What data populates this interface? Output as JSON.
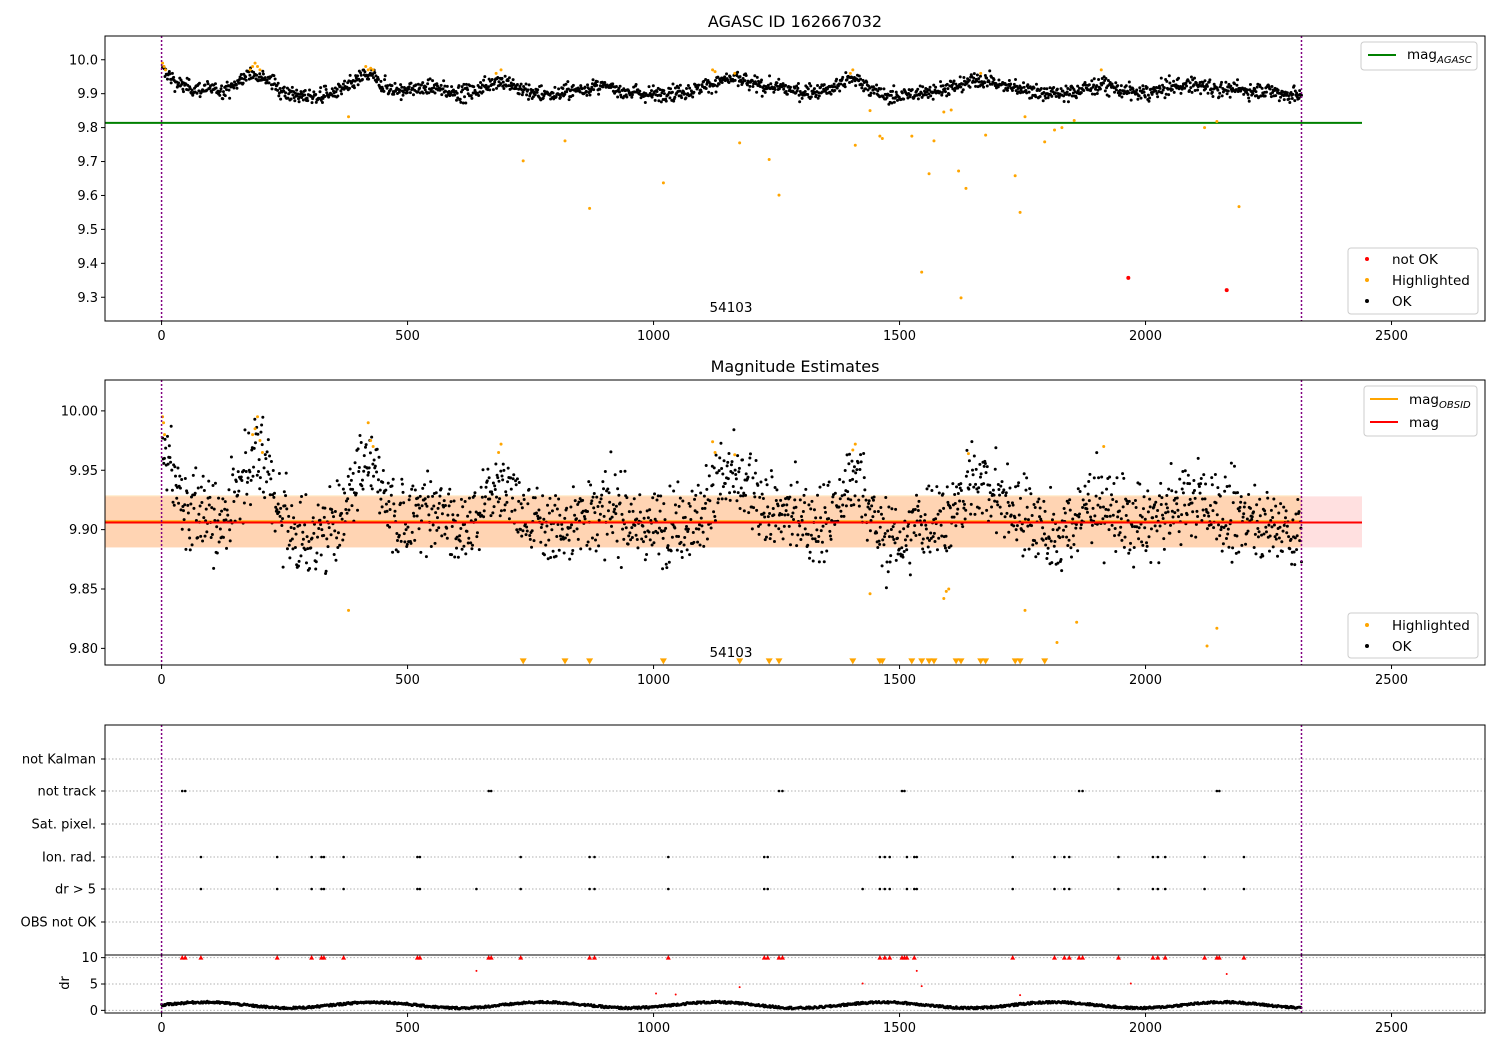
{
  "chart_data": [
    {
      "type": "scatter",
      "title": "AGASC ID 162667032",
      "annotation": "54103",
      "xlim": [
        -115,
        2690
      ],
      "ylim": [
        9.23,
        10.07
      ],
      "xticks": [
        "0",
        "500",
        "1000",
        "1500",
        "2000",
        "2500"
      ],
      "xtick_values": [
        0,
        500,
        1000,
        1500,
        2000,
        2500
      ],
      "yticks": [
        "9.3",
        "9.4",
        "9.5",
        "9.6",
        "9.7",
        "9.8",
        "9.9",
        "10.0"
      ],
      "ytick_values": [
        9.3,
        9.4,
        9.5,
        9.6,
        9.7,
        9.8,
        9.9,
        10.0
      ],
      "vlines": [
        0,
        2317
      ],
      "hline": {
        "name": "mag_AGASC",
        "y": 9.814,
        "x": [
          -115,
          2440
        ],
        "color": "#008000"
      },
      "legend_lines": [
        {
          "label": "mag",
          "sub": "AGASC",
          "color": "#008000"
        }
      ],
      "legend_points": [
        {
          "label": "not OK",
          "color": "#ff0000"
        },
        {
          "label": "Highlighted",
          "color": "#ffa500"
        },
        {
          "label": "OK",
          "color": "#000000"
        }
      ],
      "series": [
        {
          "name": "not OK",
          "color": "#ff0000",
          "x": [
            1965,
            2165
          ],
          "y": [
            9.357,
            9.321
          ]
        },
        {
          "name": "Highlighted",
          "color": "#ffa500",
          "x": [
            2,
            5,
            8,
            180,
            185,
            190,
            195,
            200,
            380,
            415,
            420,
            425,
            430,
            680,
            690,
            735,
            820,
            870,
            1020,
            1120,
            1125,
            1165,
            1175,
            1235,
            1255,
            1400,
            1405,
            1410,
            1440,
            1460,
            1465,
            1525,
            1545,
            1560,
            1570,
            1590,
            1605,
            1620,
            1625,
            1635,
            1665,
            1675,
            1735,
            1745,
            1755,
            1795,
            1815,
            1830,
            1855,
            1910,
            2120,
            2145,
            2190
          ],
          "y": [
            9.99,
            9.98,
            9.97,
            9.97,
            9.98,
            9.99,
            9.98,
            9.97,
            9.832,
            9.98,
            9.97,
            9.975,
            9.97,
            9.96,
            9.97,
            9.702,
            9.761,
            9.562,
            9.637,
            9.97,
            9.965,
            9.96,
            9.755,
            9.706,
            9.601,
            9.96,
            9.97,
            9.748,
            9.85,
            9.775,
            9.768,
            9.775,
            9.374,
            9.664,
            9.761,
            9.846,
            9.852,
            9.672,
            9.298,
            9.621,
            9.96,
            9.778,
            9.658,
            9.55,
            9.832,
            9.758,
            9.793,
            9.8,
            9.821,
            9.97,
            9.8,
            9.818,
            9.567
          ]
        },
        {
          "name": "OK",
          "color": "#000000",
          "x": [],
          "y": []
        }
      ]
    },
    {
      "type": "scatter",
      "title": "Magnitude Estimates",
      "annotation": "54103",
      "xlim": [
        -115,
        2690
      ],
      "ylim": [
        9.786,
        10.026
      ],
      "xticks": [
        "0",
        "500",
        "1000",
        "1500",
        "2000",
        "2500"
      ],
      "xtick_values": [
        0,
        500,
        1000,
        1500,
        2000,
        2500
      ],
      "yticks": [
        "9.80",
        "9.85",
        "9.90",
        "9.95",
        "10.00"
      ],
      "ytick_values": [
        9.8,
        9.85,
        9.9,
        9.95,
        10.0
      ],
      "vlines": [
        0,
        2317
      ],
      "mag_obsid": {
        "name": "mag_OBSID",
        "y": 9.907,
        "band": [
          9.885,
          9.929
        ],
        "x": [
          -115,
          2317
        ],
        "color": "#ffa500"
      },
      "mag": {
        "name": "mag",
        "y": 9.906,
        "band": [
          9.885,
          9.928
        ],
        "x": [
          -115,
          2440
        ],
        "color": "#ff0000"
      },
      "legend_lines": [
        {
          "label": "mag",
          "sub": "OBSID",
          "color": "#ffa500"
        },
        {
          "label": "mag",
          "sub": "",
          "color": "#ff0000"
        }
      ],
      "legend_points": [
        {
          "label": "Highlighted",
          "color": "#ffa500"
        },
        {
          "label": "OK",
          "color": "#000000"
        }
      ],
      "series": [
        {
          "name": "Highlighted",
          "color": "#ffa500",
          "x": [
            2,
            4,
            6,
            185,
            190,
            195,
            200,
            205,
            380,
            420,
            425,
            430,
            685,
            690,
            1120,
            1125,
            1165,
            1405,
            1410,
            1440,
            1590,
            1595,
            1600,
            1640,
            1755,
            1820,
            1860,
            1915,
            2125,
            2145
          ],
          "y": [
            9.995,
            9.99,
            9.98,
            9.98,
            9.985,
            9.995,
            9.975,
            9.965,
            9.832,
            9.99,
            9.975,
            9.97,
            9.965,
            9.972,
            9.974,
            9.965,
            9.963,
            9.967,
            9.972,
            9.846,
            9.842,
            9.848,
            9.85,
            9.964,
            9.832,
            9.805,
            9.822,
            9.97,
            9.802,
            9.817
          ]
        },
        {
          "name": "OK",
          "color": "#000000",
          "x": [],
          "y": []
        },
        {
          "name": "Highlighted (off axis)",
          "color": "#ffa500",
          "x": [
            735,
            820,
            870,
            1020,
            1175,
            1235,
            1255,
            1405,
            1460,
            1465,
            1525,
            1545,
            1560,
            1570,
            1615,
            1625,
            1665,
            1675,
            1735,
            1745,
            1795
          ],
          "y": [
            9.789,
            9.789,
            9.789,
            9.789,
            9.789,
            9.789,
            9.789,
            9.789,
            9.789,
            9.789,
            9.789,
            9.789,
            9.789,
            9.789,
            9.789,
            9.789,
            9.789,
            9.789,
            9.789,
            9.789,
            9.789
          ]
        }
      ]
    },
    {
      "type": "scatter",
      "xlim": [
        -115,
        2690
      ],
      "categories": [
        "not Kalman",
        "not track",
        "Sat. pixel.",
        "Ion. rad.",
        "dr > 5",
        "OBS not OK"
      ],
      "xticks": [
        "0",
        "500",
        "1000",
        "1500",
        "2000",
        "2500"
      ],
      "xtick_values": [
        0,
        500,
        1000,
        1500,
        2000,
        2500
      ],
      "vlines": [
        0,
        2317
      ],
      "flags": {
        "not Kalman": [],
        "not track": [
          42,
          48,
          665,
          670,
          1255,
          1262,
          1505,
          1510,
          1865,
          1872,
          2145,
          2150
        ],
        "Sat. pixel.": [],
        "Ion. rad.": [
          80,
          235,
          305,
          325,
          330,
          370,
          520,
          525,
          730,
          870,
          880,
          1030,
          1225,
          1232,
          1460,
          1470,
          1480,
          1515,
          1530,
          1535,
          1730,
          1815,
          1835,
          1845,
          1945,
          2015,
          2025,
          2040,
          2120,
          2200
        ],
        "dr > 5": [
          80,
          235,
          305,
          325,
          330,
          370,
          520,
          525,
          640,
          730,
          870,
          880,
          1030,
          1225,
          1232,
          1425,
          1460,
          1470,
          1480,
          1515,
          1530,
          1535,
          1730,
          1815,
          1835,
          1845,
          1945,
          2015,
          2025,
          2040,
          2120,
          2200
        ],
        "OBS not OK": []
      }
    },
    {
      "type": "scatter",
      "ylabel": "dr",
      "xlim": [
        -115,
        2690
      ],
      "ylim": [
        -0.5,
        10.5
      ],
      "yticks": [
        "0",
        "5",
        "10"
      ],
      "ytick_values": [
        0,
        5,
        10
      ],
      "xticks": [
        "0",
        "500",
        "1000",
        "1500",
        "2000",
        "2500"
      ],
      "xtick_values": [
        0,
        500,
        1000,
        1500,
        2000,
        2500
      ],
      "vlines": [
        0,
        2317
      ],
      "series": [
        {
          "name": "dr",
          "color": "#000000",
          "x": [],
          "y": []
        },
        {
          "name": "dr outliers",
          "color": "#ff0000",
          "x": [
            42,
            48,
            80,
            235,
            305,
            325,
            330,
            370,
            520,
            525,
            640,
            665,
            670,
            730,
            870,
            880,
            1005,
            1030,
            1045,
            1175,
            1225,
            1232,
            1255,
            1262,
            1425,
            1460,
            1470,
            1480,
            1505,
            1510,
            1515,
            1530,
            1535,
            1545,
            1730,
            1745,
            1815,
            1835,
            1845,
            1865,
            1872,
            1945,
            1970,
            2015,
            2025,
            2040,
            2120,
            2145,
            2150,
            2165,
            2200
          ],
          "y": [
            10,
            10,
            10,
            10,
            10,
            10,
            10,
            10,
            10,
            10,
            7.5,
            10,
            10,
            10,
            10,
            10,
            3.2,
            10,
            3.0,
            4.4,
            10,
            10,
            10,
            10,
            5.1,
            10,
            10,
            10,
            10,
            10,
            10,
            10,
            7.5,
            4.6,
            10,
            2.9,
            10,
            10,
            10,
            10,
            10,
            10,
            5.1,
            10,
            10,
            10,
            10,
            10,
            10,
            6.9,
            10
          ]
        }
      ]
    }
  ]
}
